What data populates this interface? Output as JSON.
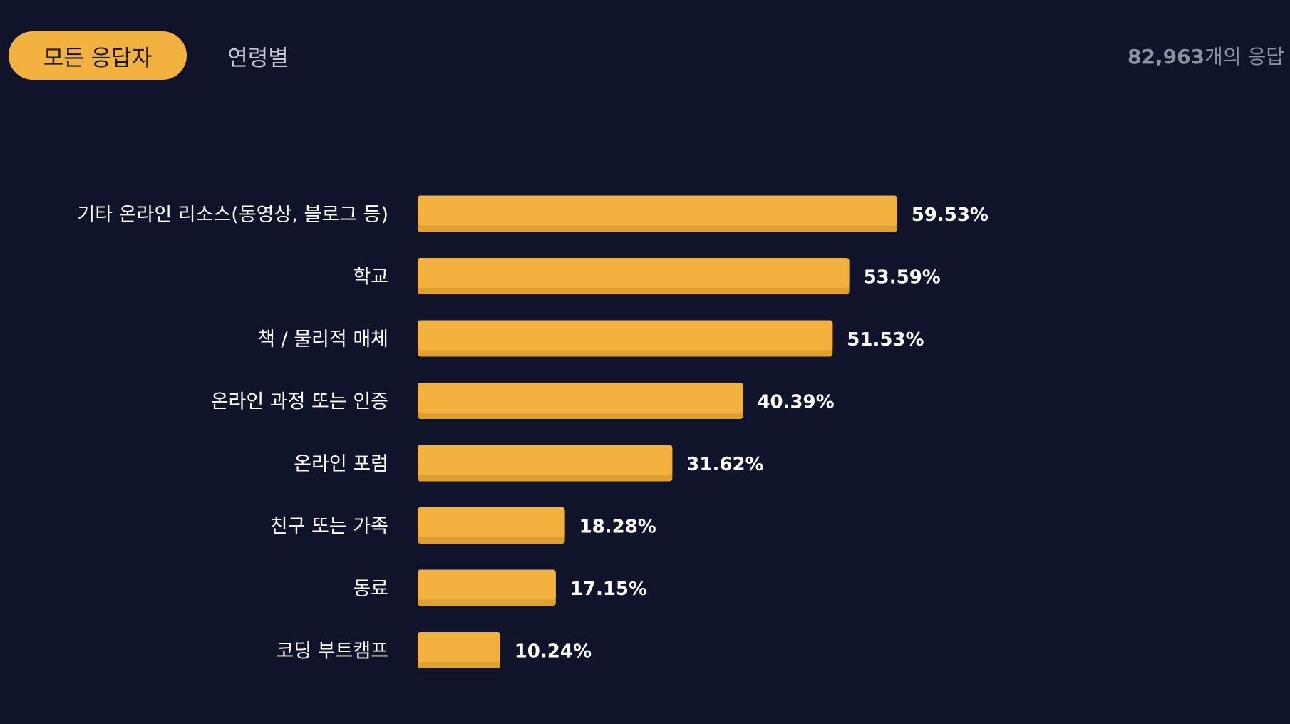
{
  "tabs": {
    "all_label": "모든 응답자",
    "age_label": "연령별"
  },
  "responses": {
    "count": "82,963",
    "suffix": "개의 응답"
  },
  "colors": {
    "background": "#0f142b",
    "bar": "#f3b240",
    "bar_shade": "#dea032",
    "text": "#ffffff"
  },
  "chart_data": {
    "type": "bar",
    "orientation": "horizontal",
    "categories": [
      "기타 온라인 리소스(동영상, 블로그 등)",
      "학교",
      "책 / 물리적 매체",
      "온라인 과정 또는 인증",
      "온라인 포럼",
      "친구 또는 가족",
      "동료",
      "코딩 부트캠프"
    ],
    "values": [
      59.53,
      53.59,
      51.53,
      40.39,
      31.62,
      18.28,
      17.15,
      10.24
    ],
    "value_labels": [
      "59.53%",
      "53.59%",
      "51.53%",
      "40.39%",
      "31.62%",
      "18.28%",
      "17.15%",
      "10.24%"
    ],
    "unit": "%",
    "xlim": [
      0,
      100
    ],
    "grid": false,
    "legend": "none"
  }
}
